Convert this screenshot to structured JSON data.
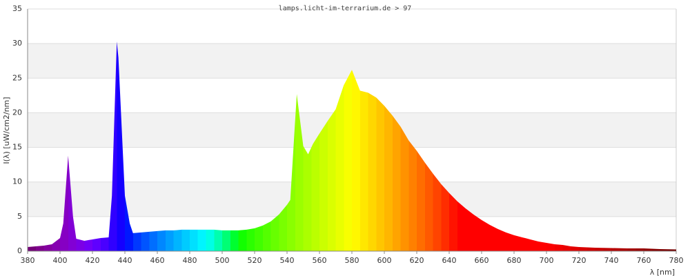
{
  "chart_data": {
    "type": "area",
    "title": "lamps.licht-im-terrarium.de > 97",
    "x_label": "λ [nm]",
    "y_label": "I(λ)  [uW/cm2/nm]",
    "x": [
      380,
      385,
      390,
      395,
      400,
      402,
      405,
      408,
      410,
      415,
      420,
      425,
      430,
      432,
      435,
      436,
      440,
      443,
      445,
      450,
      455,
      460,
      465,
      470,
      475,
      480,
      485,
      490,
      495,
      500,
      505,
      510,
      515,
      520,
      525,
      530,
      535,
      540,
      542,
      546,
      550,
      553,
      556,
      560,
      565,
      570,
      575,
      580,
      585,
      590,
      595,
      600,
      605,
      610,
      615,
      620,
      625,
      630,
      635,
      640,
      645,
      650,
      655,
      660,
      665,
      670,
      675,
      680,
      685,
      690,
      695,
      700,
      705,
      710,
      715,
      720,
      730,
      740,
      750,
      760,
      770,
      780
    ],
    "values": [
      0.6,
      0.7,
      0.8,
      1.0,
      1.9,
      4,
      13.8,
      5,
      1.8,
      1.5,
      1.7,
      1.9,
      2.0,
      8,
      30.3,
      28,
      8,
      4,
      2.6,
      2.7,
      2.8,
      2.9,
      3.0,
      3.0,
      3.1,
      3.1,
      3.1,
      3.1,
      3.1,
      3.0,
      3.0,
      3.0,
      3.1,
      3.3,
      3.7,
      4.3,
      5.3,
      6.7,
      7.4,
      22.7,
      15.2,
      14.0,
      15.5,
      17.0,
      18.8,
      20.5,
      24.0,
      26.2,
      23.2,
      22.9,
      22.2,
      21.0,
      19.6,
      18.0,
      16.0,
      14.5,
      12.8,
      11.2,
      9.7,
      8.4,
      7.2,
      6.2,
      5.3,
      4.5,
      3.8,
      3.2,
      2.7,
      2.3,
      2.0,
      1.7,
      1.4,
      1.2,
      1.0,
      0.9,
      0.7,
      0.6,
      0.5,
      0.45,
      0.4,
      0.4,
      0.3,
      0.25
    ],
    "xlim": [
      380,
      780
    ],
    "xticks": [
      380,
      400,
      420,
      440,
      460,
      480,
      500,
      520,
      540,
      560,
      580,
      600,
      620,
      640,
      660,
      680,
      700,
      720,
      740,
      760,
      780
    ],
    "ylim": [
      0,
      35
    ],
    "yticks": [
      0,
      5,
      10,
      15,
      20,
      25,
      30,
      35
    ],
    "grid": true,
    "band_color": "#f2f2f2",
    "grid_color": "#dddddd"
  }
}
